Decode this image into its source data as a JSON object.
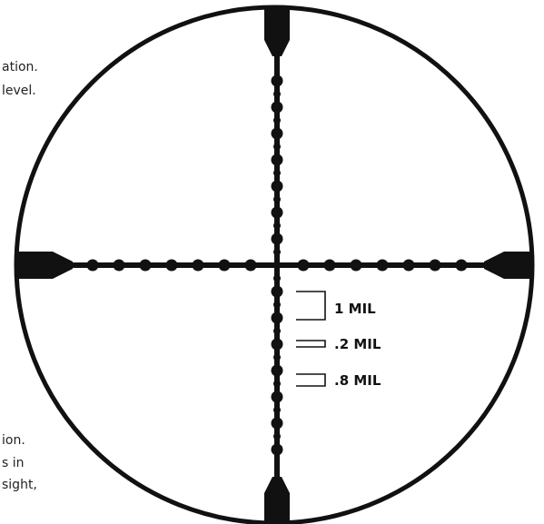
{
  "background_text": {
    "top_lines": [
      "ation.",
      "level."
    ],
    "bottom_lines": [
      "ion.",
      "s in",
      "sight,"
    ]
  },
  "reticle": {
    "stroke_color": "#111111",
    "background_color": "#ffffff",
    "markers": [
      {
        "label": "1 MIL"
      },
      {
        "label": ".2 MIL"
      },
      {
        "label": ".8 MIL"
      }
    ]
  }
}
